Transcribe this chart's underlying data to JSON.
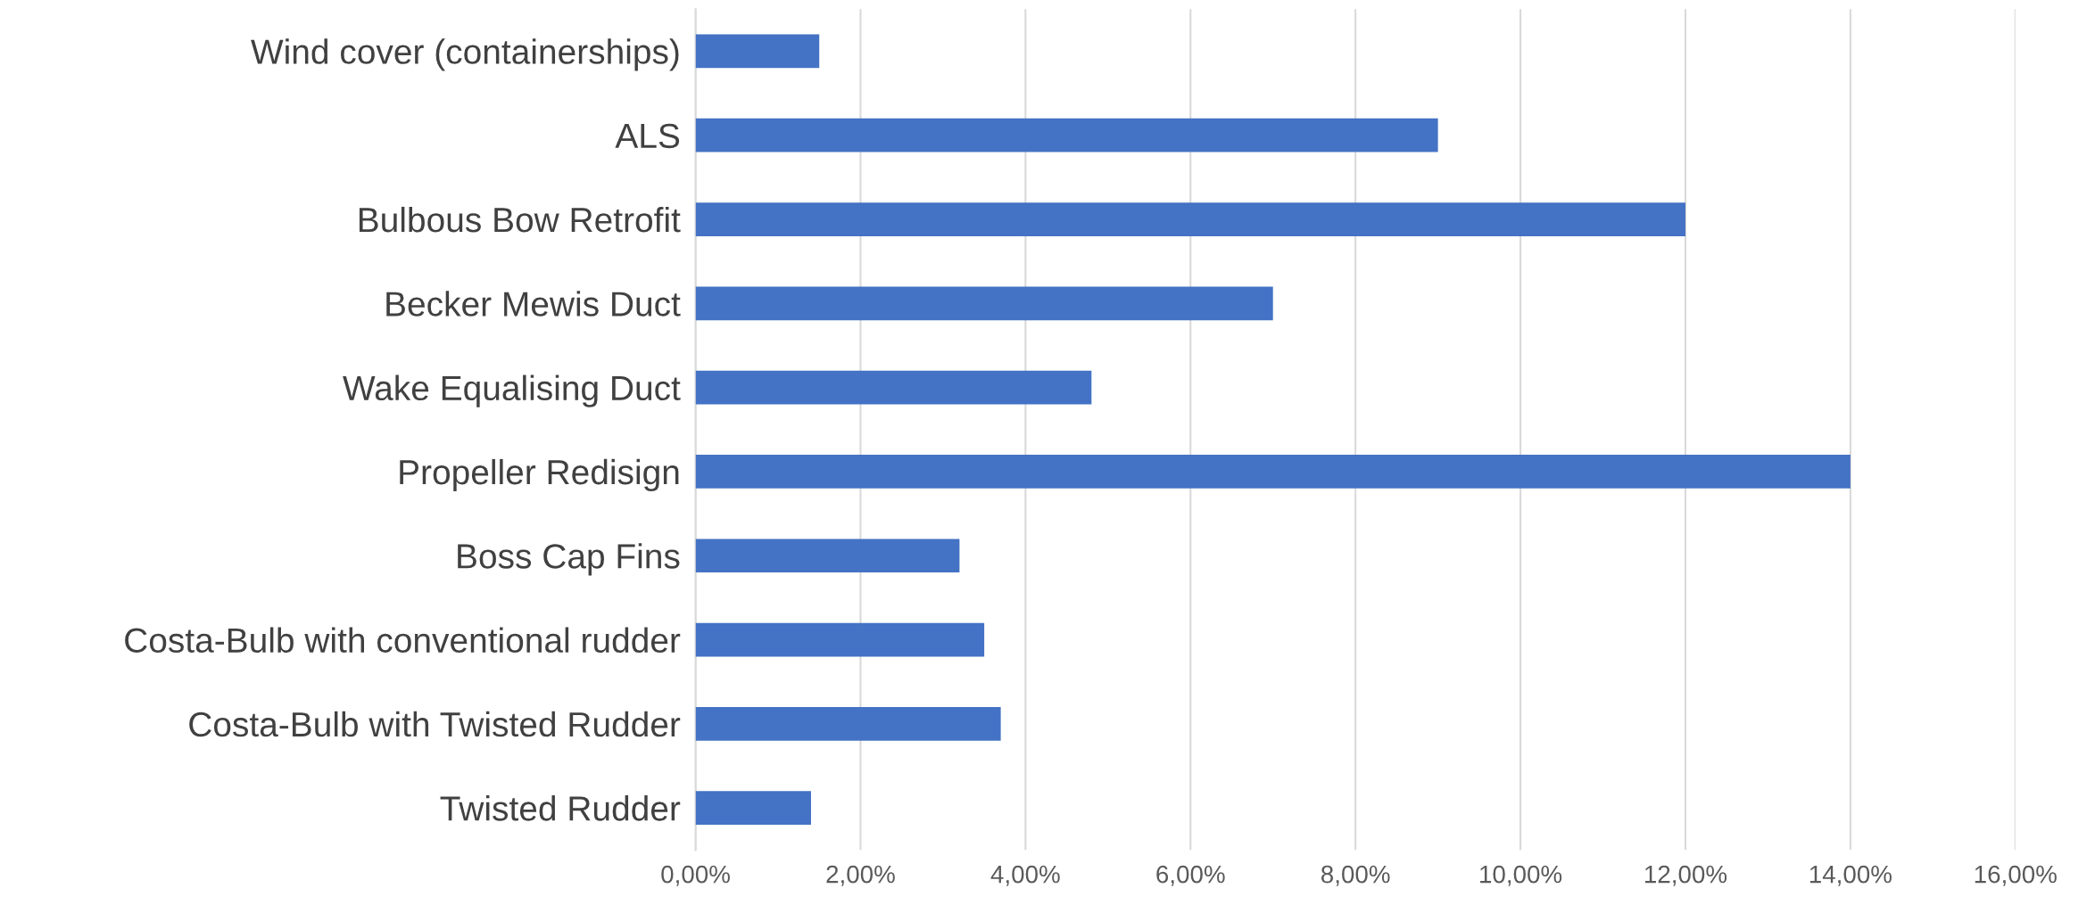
{
  "chart_data": {
    "type": "bar",
    "orientation": "horizontal",
    "categories": [
      "Wind cover (containerships)",
      "ALS",
      "Bulbous Bow Retrofit",
      "Becker Mewis Duct",
      "Wake Equalising Duct",
      "Propeller Redisign",
      "Boss Cap Fins",
      "Costa-Bulb with conventional rudder",
      "Costa-Bulb with Twisted Rudder",
      "Twisted Rudder"
    ],
    "values": [
      1.5,
      9.0,
      12.0,
      7.0,
      4.8,
      14.0,
      3.2,
      3.5,
      3.7,
      1.4
    ],
    "color": "#4472c4",
    "xlim": [
      0,
      16
    ],
    "xticks": [
      {
        "value": 0,
        "label": "0,00%"
      },
      {
        "value": 2,
        "label": "2,00%"
      },
      {
        "value": 4,
        "label": "4,00%"
      },
      {
        "value": 6,
        "label": "6,00%"
      },
      {
        "value": 8,
        "label": "8,00%"
      },
      {
        "value": 10,
        "label": "10,00%"
      },
      {
        "value": 12,
        "label": "12,00%"
      },
      {
        "value": 14,
        "label": "14,00%"
      },
      {
        "value": 16,
        "label": "16,00%"
      }
    ],
    "grid": "x"
  }
}
